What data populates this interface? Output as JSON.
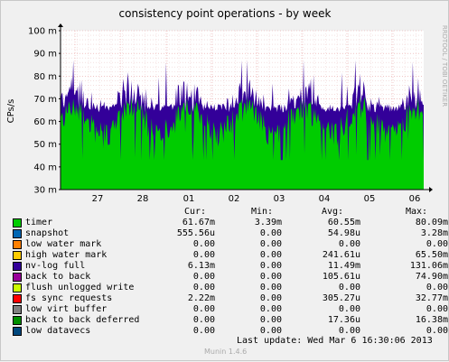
{
  "chart_data": {
    "type": "area",
    "title": "consistency point operations - by week",
    "ylabel": "CPs/s",
    "watermark": "RRDTOOL / TOBI OETIKER",
    "yticks": [
      "30 m",
      "40 m",
      "50 m",
      "60 m",
      "70 m",
      "80 m",
      "90 m",
      "100 m"
    ],
    "ylim": [
      0.03,
      0.1
    ],
    "xticks": [
      "27",
      "28",
      "01",
      "02",
      "03",
      "04",
      "05",
      "06"
    ],
    "grid": true,
    "series": [
      {
        "name": "timer",
        "color": "#00cc00"
      },
      {
        "name": "nv-log full",
        "color": "#330099"
      }
    ]
  },
  "legend": {
    "headers": {
      "cur": "Cur:",
      "min": "Min:",
      "avg": "Avg:",
      "max": "Max:"
    },
    "rows": [
      {
        "name": "timer",
        "color": "#00cc00",
        "cur": "61.67m",
        "min": "3.39m",
        "avg": "60.55m",
        "max": "80.09m"
      },
      {
        "name": "snapshot",
        "color": "#0066b3",
        "cur": "555.56u",
        "min": "0.00",
        "avg": "54.98u",
        "max": "3.28m"
      },
      {
        "name": "low water mark",
        "color": "#ff8000",
        "cur": "0.00",
        "min": "0.00",
        "avg": "0.00",
        "max": "0.00"
      },
      {
        "name": "high water mark",
        "color": "#ffcc00",
        "cur": "0.00",
        "min": "0.00",
        "avg": "241.61u",
        "max": "65.50m"
      },
      {
        "name": "nv-log full",
        "color": "#330099",
        "cur": "6.13m",
        "min": "0.00",
        "avg": "11.49m",
        "max": "131.06m"
      },
      {
        "name": "back to back",
        "color": "#990099",
        "cur": "0.00",
        "min": "0.00",
        "avg": "105.61u",
        "max": "74.90m"
      },
      {
        "name": "flush unlogged write",
        "color": "#ccff00",
        "cur": "0.00",
        "min": "0.00",
        "avg": "0.00",
        "max": "0.00"
      },
      {
        "name": "fs sync requests",
        "color": "#ff0000",
        "cur": "2.22m",
        "min": "0.00",
        "avg": "305.27u",
        "max": "32.77m"
      },
      {
        "name": "low virt buffer",
        "color": "#808080",
        "cur": "0.00",
        "min": "0.00",
        "avg": "0.00",
        "max": "0.00"
      },
      {
        "name": "back to back deferred",
        "color": "#008f00",
        "cur": "0.00",
        "min": "0.00",
        "avg": "17.36u",
        "max": "16.38m"
      },
      {
        "name": "low datavecs",
        "color": "#00487d",
        "cur": "0.00",
        "min": "0.00",
        "avg": "0.00",
        "max": "0.00"
      }
    ]
  },
  "footer": {
    "last_update": "Last update: Wed Mar  6 16:30:06 2013",
    "version": "Munin 1.4.6"
  }
}
